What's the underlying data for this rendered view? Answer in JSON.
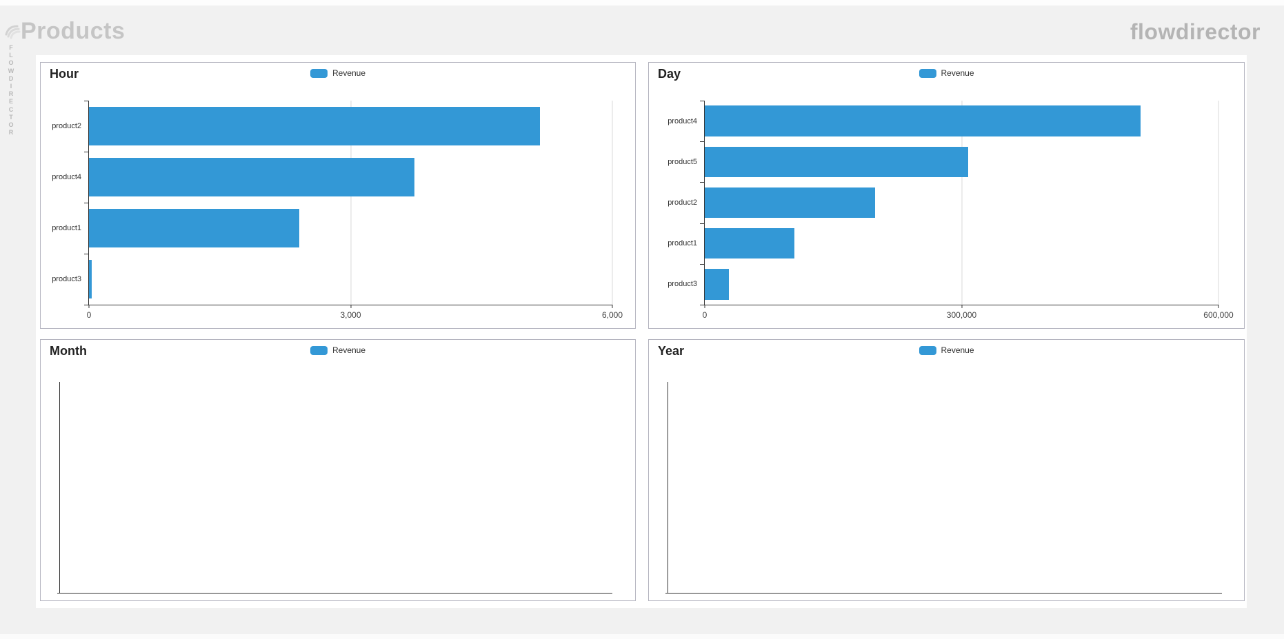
{
  "header": {
    "page_title": "Products",
    "brand": "flowdirector",
    "vertical_brand": "FLOWDIRECTOR"
  },
  "colors": {
    "bar_blue": "#3398d6",
    "page_bg": "#f1f1f1",
    "panel_border": "#b4b4bf",
    "grid_line": "#d9d9d9",
    "axis_line": "#333333",
    "muted_header_text": "#c5c5c5"
  },
  "chart_data": [
    {
      "type": "bar",
      "orientation": "horizontal",
      "title": "Hour",
      "series_name": "Revenue",
      "legend_position": "top-center",
      "categories": [
        "product2",
        "product4",
        "product1",
        "product3"
      ],
      "values": [
        5170,
        3730,
        2410,
        35
      ],
      "xlim": [
        0,
        6000
      ],
      "x_tick_values": [
        0,
        3000,
        6000
      ],
      "x_ticks": [
        "0",
        "3,000",
        "6,000"
      ],
      "grid": "vertical"
    },
    {
      "type": "bar",
      "orientation": "horizontal",
      "title": "Day",
      "series_name": "Revenue",
      "legend_position": "top-center",
      "categories": [
        "product4",
        "product5",
        "product2",
        "product1",
        "product3"
      ],
      "values": [
        509000,
        308000,
        199000,
        105000,
        28000
      ],
      "xlim": [
        0,
        600000
      ],
      "x_tick_values": [
        0,
        300000,
        600000
      ],
      "x_ticks": [
        "0",
        "300,000",
        "600,000"
      ],
      "grid": "vertical"
    },
    {
      "type": "bar",
      "orientation": "horizontal",
      "title": "Month",
      "series_name": "Revenue",
      "legend_position": "top-center",
      "categories": [],
      "values": [],
      "xlim": null,
      "x_tick_values": [],
      "x_ticks": [],
      "grid": "none"
    },
    {
      "type": "bar",
      "orientation": "horizontal",
      "title": "Year",
      "series_name": "Revenue",
      "legend_position": "top-center",
      "categories": [],
      "values": [],
      "xlim": null,
      "x_tick_values": [],
      "x_ticks": [],
      "grid": "none"
    }
  ]
}
